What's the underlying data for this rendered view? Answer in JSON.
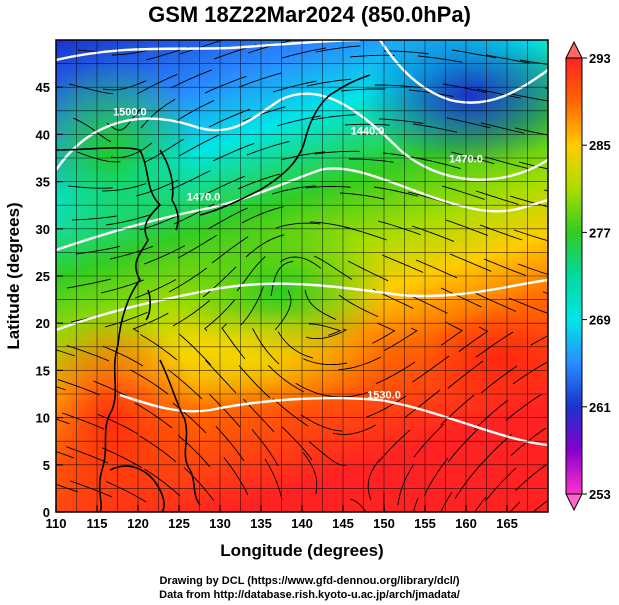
{
  "title": "GSM 18Z22Mar2024 (850.0hPa)",
  "footer": {
    "line1": "Drawing by DCL (https://www.gfd-dennou.org/library/dcl/)",
    "line2": "Data from http://database.rish.kyoto-u.ac.jp/arch/jmadata/"
  },
  "chart_data": {
    "type": "heatmap",
    "xlabel": "Longitude (degrees)",
    "ylabel": "Latitude (degrees)",
    "xlim": [
      110,
      170
    ],
    "ylim": [
      0,
      50
    ],
    "x_ticks": [
      110,
      115,
      120,
      125,
      130,
      135,
      140,
      145,
      150,
      155,
      160,
      165
    ],
    "y_ticks": [
      0,
      5,
      10,
      15,
      20,
      25,
      30,
      35,
      40,
      45
    ],
    "colorbar": {
      "ticks": [
        293,
        285,
        277,
        269,
        261,
        253
      ],
      "min": 253,
      "max": 293,
      "stops": [
        {
          "value": 253,
          "color": "#ff33cc"
        },
        {
          "value": 257,
          "color": "#8800cc"
        },
        {
          "value": 261,
          "color": "#1a33cc"
        },
        {
          "value": 265,
          "color": "#2a8cff"
        },
        {
          "value": 269,
          "color": "#00e6e6"
        },
        {
          "value": 273,
          "color": "#00d9a0"
        },
        {
          "value": 277,
          "color": "#33cc22"
        },
        {
          "value": 281,
          "color": "#aadd00"
        },
        {
          "value": 285,
          "color": "#ffcc00"
        },
        {
          "value": 289,
          "color": "#ff6600"
        },
        {
          "value": 293,
          "color": "#ff2222"
        }
      ]
    },
    "contour_labels": [
      {
        "text": "1440.0",
        "lon": 148,
        "lat": 40
      },
      {
        "text": "1500.0",
        "lon": 119,
        "lat": 42
      },
      {
        "text": "1470.0",
        "lon": 160,
        "lat": 37
      },
      {
        "text": "1470.0",
        "lon": 128,
        "lat": 33
      },
      {
        "text": "1530.0",
        "lon": 150,
        "lat": 12
      }
    ]
  }
}
